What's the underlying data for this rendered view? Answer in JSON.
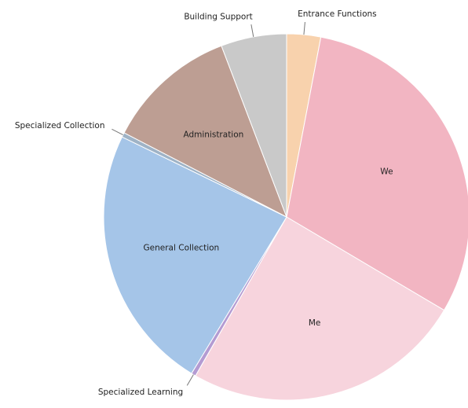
{
  "chart_data": {
    "type": "pie",
    "categories": [
      "Entrance Functions",
      "We",
      "Me",
      "Specialized Learning",
      "General Collection",
      "Specialized Collection",
      "Administration",
      "Building Support"
    ],
    "values": [
      3,
      30.5,
      24.8,
      0.4,
      23.5,
      0.4,
      11.6,
      5.8
    ],
    "colors": [
      "#f8d2ad",
      "#f2b5c2",
      "#f7d4dd",
      "#b49bd2",
      "#a5c5e8",
      "#9fb3c6",
      "#bd9e93",
      "#c9c9c9"
    ]
  }
}
